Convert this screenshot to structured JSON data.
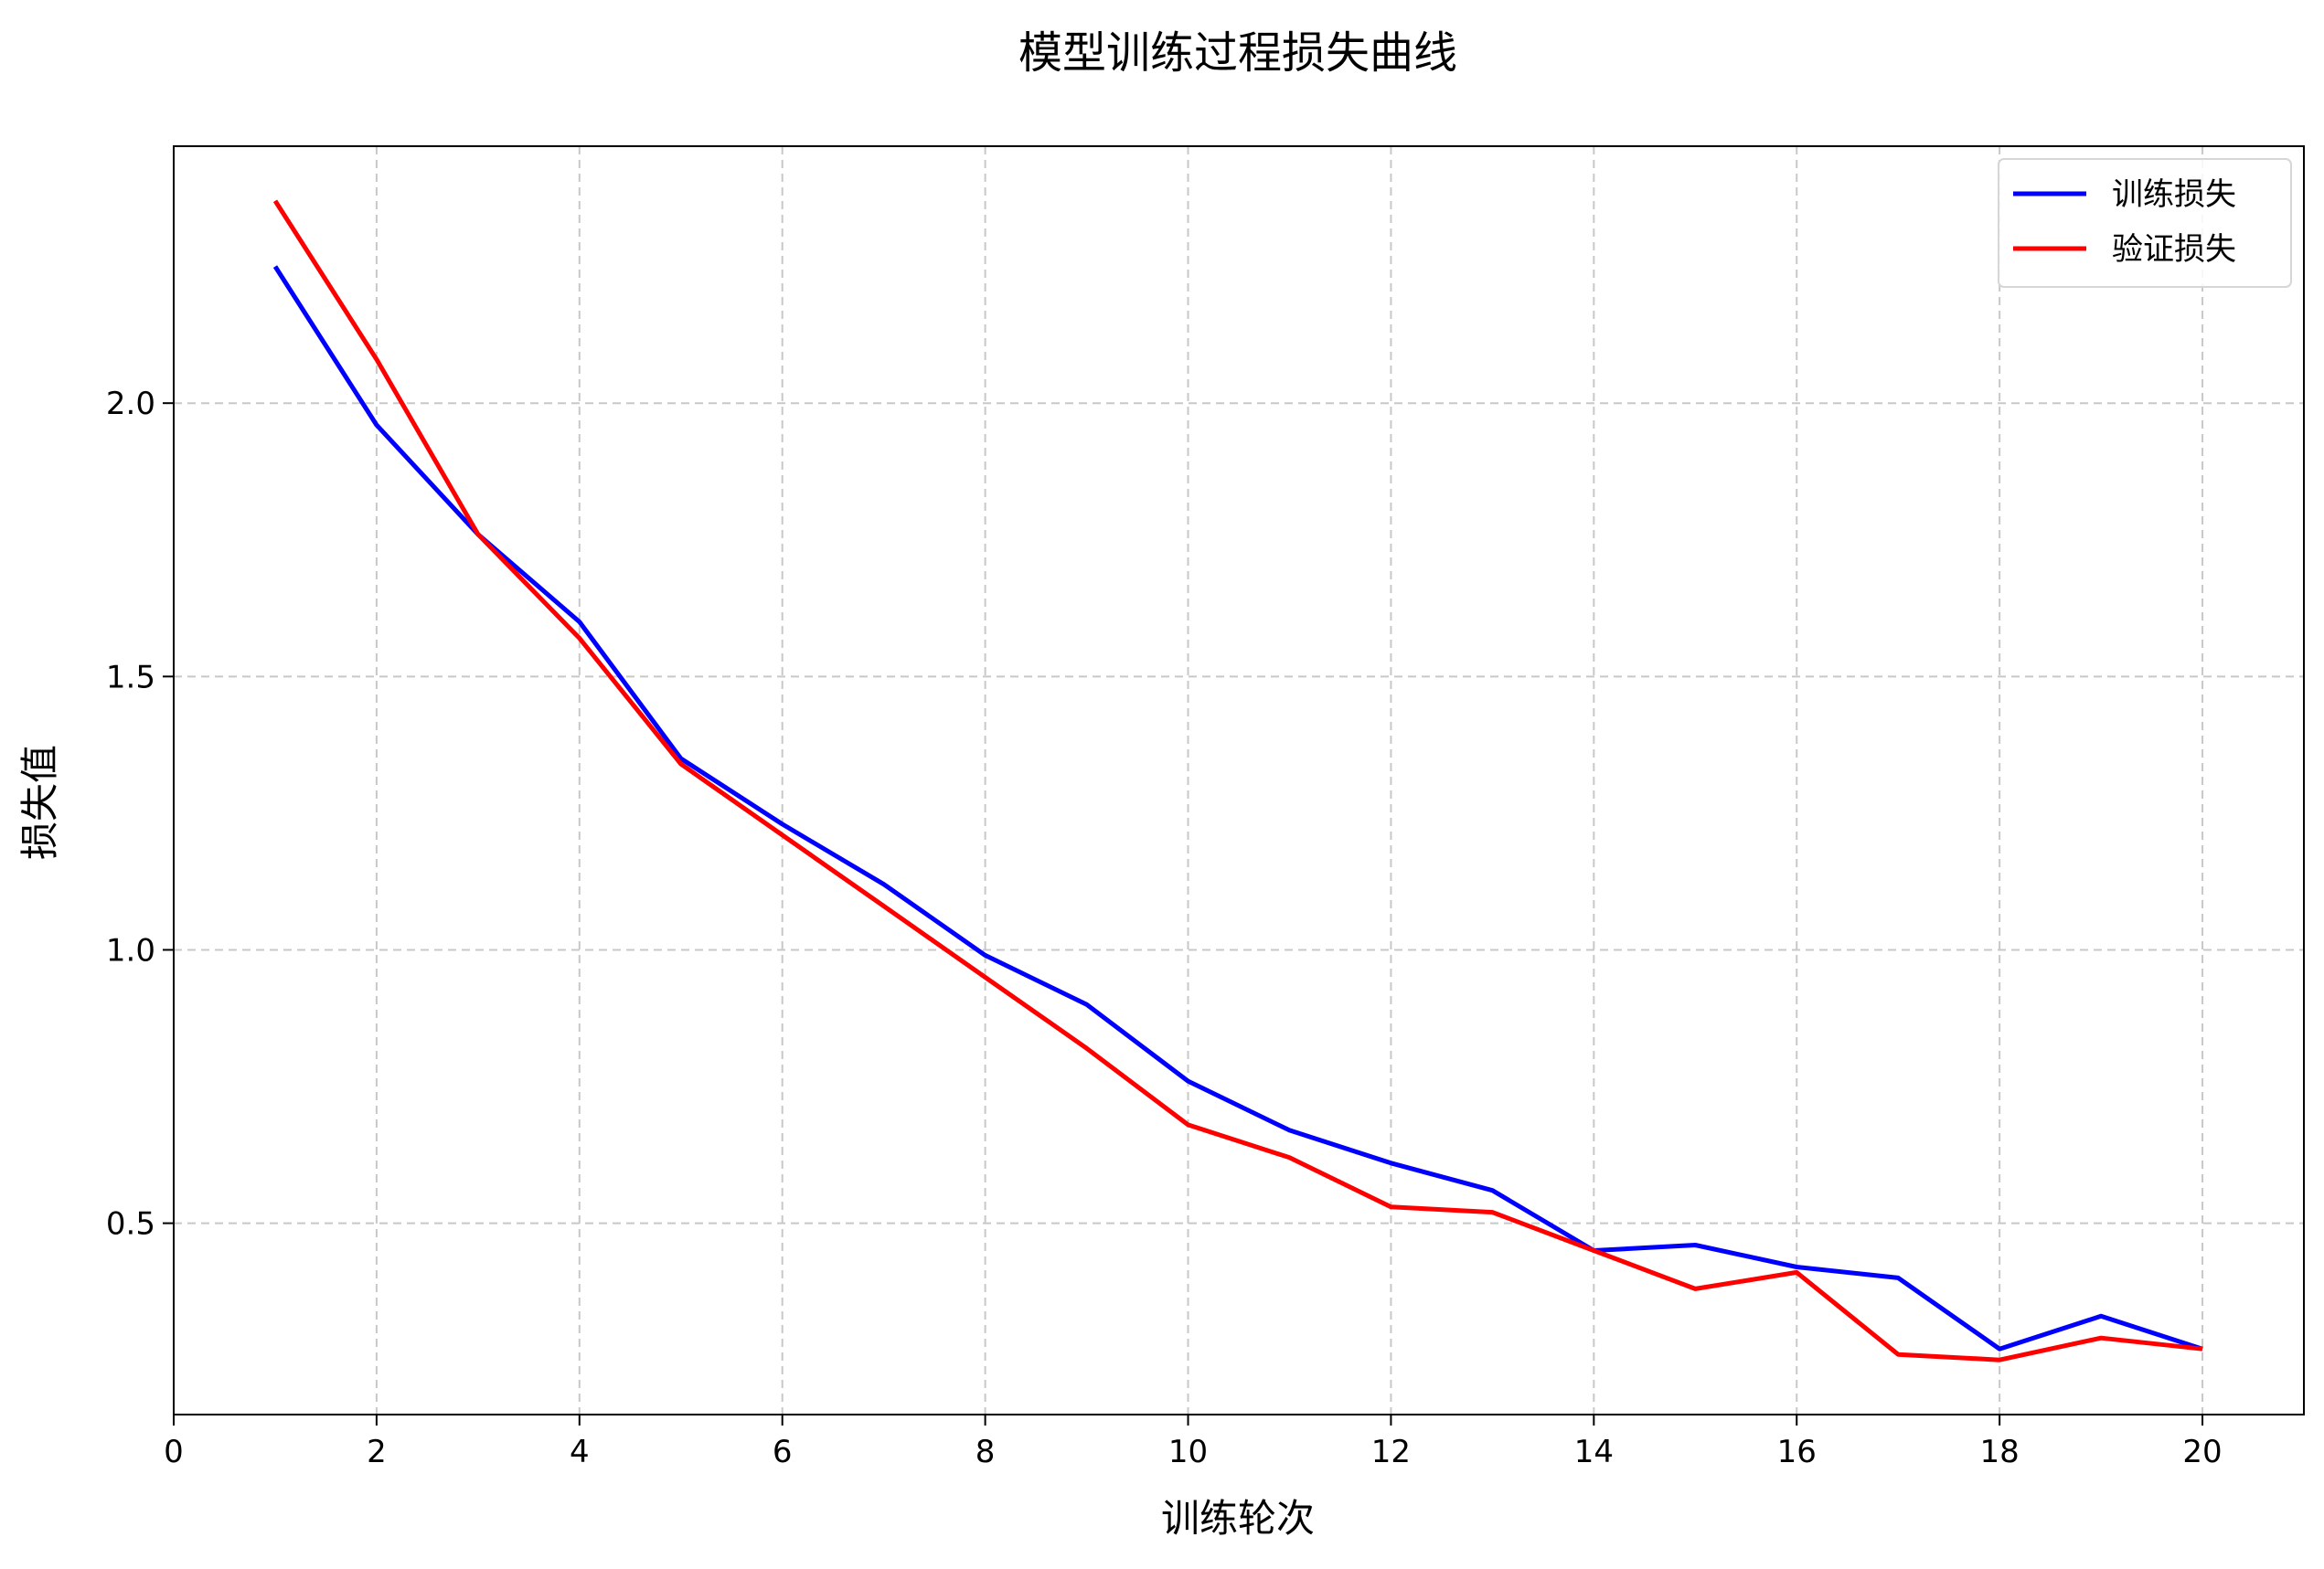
{
  "chart_data": {
    "type": "line",
    "title": "模型训练过程损失曲线",
    "xlabel": "训练轮次",
    "ylabel": "损失值",
    "xlim": [
      0,
      21
    ],
    "ylim": [
      0.15,
      2.47
    ],
    "xticks": [
      0,
      2,
      4,
      6,
      8,
      10,
      12,
      14,
      16,
      18,
      20
    ],
    "yticks": [
      0.5,
      1.0,
      1.5,
      2.0
    ],
    "grid": true,
    "grid_style": "dashed",
    "legend_position": "top-right",
    "x": [
      1,
      2,
      3,
      4,
      5,
      6,
      7,
      8,
      9,
      10,
      11,
      12,
      13,
      14,
      15,
      16,
      17,
      18,
      19,
      20
    ],
    "series": [
      {
        "name": "训练损失",
        "color": "#0000ff",
        "values": [
          2.25,
          1.96,
          1.76,
          1.6,
          1.35,
          1.23,
          1.12,
          0.99,
          0.9,
          0.76,
          0.67,
          0.61,
          0.56,
          0.45,
          0.46,
          0.42,
          0.4,
          0.27,
          0.33,
          0.27
        ]
      },
      {
        "name": "验证损失",
        "color": "#ff0000",
        "values": [
          2.37,
          2.08,
          1.76,
          1.57,
          1.34,
          1.21,
          1.08,
          0.95,
          0.82,
          0.68,
          0.62,
          0.53,
          0.52,
          0.45,
          0.38,
          0.41,
          0.26,
          0.25,
          0.29,
          0.27
        ]
      }
    ]
  }
}
